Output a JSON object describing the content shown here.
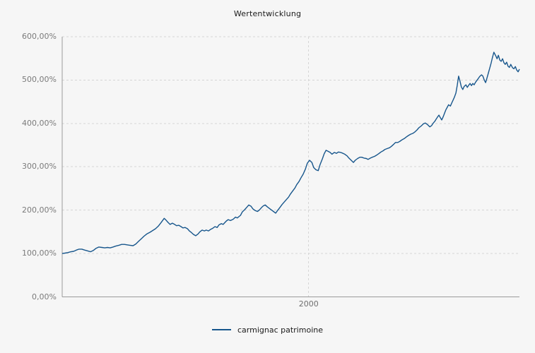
{
  "colors": {
    "background": "#f6f6f6",
    "series": "#17568c",
    "grid": "#d6d6d6",
    "axis": "#9a9a9a",
    "muted_text": "#7b7b7b",
    "text": "#1a1a1a"
  },
  "chart": {
    "title": "Wertentwicklung",
    "y_axis": {
      "ticks": [
        {
          "label": "600,00%",
          "value": 600
        },
        {
          "label": "500,00%",
          "value": 500
        },
        {
          "label": "400,00%",
          "value": 400
        },
        {
          "label": "300,00%",
          "value": 300
        },
        {
          "label": "200,00%",
          "value": 200
        },
        {
          "label": "100,00%",
          "value": 100
        },
        {
          "label": "0,00%",
          "value": 0
        }
      ]
    },
    "x_axis": {
      "ticks": [
        {
          "label": "2000",
          "frac": 0.539
        }
      ]
    },
    "legend": [
      {
        "label": "carmignac patrimoine",
        "color": "#17568c"
      }
    ]
  },
  "chart_data": {
    "type": "line",
    "title": "Wertentwicklung",
    "ylabel": "",
    "xlabel": "",
    "ylim": [
      0,
      600
    ],
    "y_unit": "%",
    "y_tick_labels": [
      "0,00%",
      "100,00%",
      "200,00%",
      "300,00%",
      "400,00%",
      "500,00%",
      "600,00%"
    ],
    "x_tick": {
      "label": "2000",
      "frac": 0.539
    },
    "grid": "dashed horizontal every 100%, dashed vertical at x tick",
    "legend_position": "bottom-center",
    "series": [
      {
        "name": "carmignac patrimoine",
        "color": "#17568c",
        "x_format": "fraction of time axis (0 = left edge, 1 = right edge), year 2000 at 0.539",
        "y_format": "percent",
        "points": [
          [
            0,
            100
          ],
          [
            0.006,
            101
          ],
          [
            0.012,
            102
          ],
          [
            0.019,
            104
          ],
          [
            0.025,
            105
          ],
          [
            0.031,
            108
          ],
          [
            0.037,
            110
          ],
          [
            0.043,
            110
          ],
          [
            0.049,
            108
          ],
          [
            0.056,
            106
          ],
          [
            0.062,
            104
          ],
          [
            0.068,
            107
          ],
          [
            0.074,
            112
          ],
          [
            0.08,
            115
          ],
          [
            0.087,
            114
          ],
          [
            0.093,
            113
          ],
          [
            0.099,
            114
          ],
          [
            0.105,
            113
          ],
          [
            0.111,
            115
          ],
          [
            0.117,
            117
          ],
          [
            0.124,
            119
          ],
          [
            0.13,
            121
          ],
          [
            0.136,
            121
          ],
          [
            0.142,
            120
          ],
          [
            0.148,
            119
          ],
          [
            0.155,
            118
          ],
          [
            0.161,
            122
          ],
          [
            0.167,
            128
          ],
          [
            0.173,
            134
          ],
          [
            0.179,
            140
          ],
          [
            0.185,
            145
          ],
          [
            0.192,
            149
          ],
          [
            0.198,
            153
          ],
          [
            0.204,
            157
          ],
          [
            0.21,
            163
          ],
          [
            0.216,
            171
          ],
          [
            0.223,
            181
          ],
          [
            0.227,
            177
          ],
          [
            0.232,
            171
          ],
          [
            0.236,
            167
          ],
          [
            0.241,
            170
          ],
          [
            0.246,
            167
          ],
          [
            0.25,
            164
          ],
          [
            0.255,
            165
          ],
          [
            0.26,
            162
          ],
          [
            0.264,
            159
          ],
          [
            0.269,
            160
          ],
          [
            0.274,
            157
          ],
          [
            0.278,
            152
          ],
          [
            0.283,
            148
          ],
          [
            0.287,
            144
          ],
          [
            0.292,
            141
          ],
          [
            0.297,
            145
          ],
          [
            0.301,
            150
          ],
          [
            0.306,
            154
          ],
          [
            0.311,
            152
          ],
          [
            0.315,
            154
          ],
          [
            0.32,
            152
          ],
          [
            0.325,
            156
          ],
          [
            0.329,
            158
          ],
          [
            0.334,
            162
          ],
          [
            0.339,
            160
          ],
          [
            0.343,
            166
          ],
          [
            0.348,
            169
          ],
          [
            0.352,
            167
          ],
          [
            0.359,
            175
          ],
          [
            0.363,
            178
          ],
          [
            0.368,
            176
          ],
          [
            0.374,
            179
          ],
          [
            0.379,
            184
          ],
          [
            0.383,
            182
          ],
          [
            0.39,
            188
          ],
          [
            0.394,
            196
          ],
          [
            0.399,
            201
          ],
          [
            0.405,
            208
          ],
          [
            0.408,
            212
          ],
          [
            0.413,
            209
          ],
          [
            0.417,
            203
          ],
          [
            0.422,
            199
          ],
          [
            0.427,
            197
          ],
          [
            0.431,
            200
          ],
          [
            0.436,
            206
          ],
          [
            0.44,
            210
          ],
          [
            0.444,
            212
          ],
          [
            0.448,
            208
          ],
          [
            0.453,
            204
          ],
          [
            0.458,
            200
          ],
          [
            0.462,
            197
          ],
          [
            0.467,
            193
          ],
          [
            0.471,
            199
          ],
          [
            0.476,
            206
          ],
          [
            0.481,
            213
          ],
          [
            0.485,
            218
          ],
          [
            0.49,
            224
          ],
          [
            0.495,
            230
          ],
          [
            0.499,
            237
          ],
          [
            0.504,
            244
          ],
          [
            0.509,
            251
          ],
          [
            0.513,
            259
          ],
          [
            0.518,
            266
          ],
          [
            0.522,
            274
          ],
          [
            0.527,
            283
          ],
          [
            0.532,
            295
          ],
          [
            0.536,
            308
          ],
          [
            0.541,
            315
          ],
          [
            0.546,
            310
          ],
          [
            0.55,
            298
          ],
          [
            0.555,
            293
          ],
          [
            0.56,
            291
          ],
          [
            0.564,
            305
          ],
          [
            0.569,
            318
          ],
          [
            0.573,
            330
          ],
          [
            0.577,
            338
          ],
          [
            0.581,
            336
          ],
          [
            0.586,
            333
          ],
          [
            0.59,
            329
          ],
          [
            0.595,
            333
          ],
          [
            0.6,
            331
          ],
          [
            0.604,
            334
          ],
          [
            0.609,
            333
          ],
          [
            0.614,
            331
          ],
          [
            0.618,
            329
          ],
          [
            0.623,
            325
          ],
          [
            0.627,
            320
          ],
          [
            0.632,
            315
          ],
          [
            0.637,
            310
          ],
          [
            0.641,
            315
          ],
          [
            0.646,
            319
          ],
          [
            0.651,
            322
          ],
          [
            0.655,
            322
          ],
          [
            0.66,
            320
          ],
          [
            0.665,
            319
          ],
          [
            0.669,
            317
          ],
          [
            0.674,
            320
          ],
          [
            0.678,
            322
          ],
          [
            0.683,
            324
          ],
          [
            0.688,
            327
          ],
          [
            0.692,
            330
          ],
          [
            0.697,
            334
          ],
          [
            0.702,
            337
          ],
          [
            0.706,
            340
          ],
          [
            0.711,
            342
          ],
          [
            0.716,
            344
          ],
          [
            0.72,
            347
          ],
          [
            0.725,
            352
          ],
          [
            0.729,
            356
          ],
          [
            0.734,
            356
          ],
          [
            0.739,
            359
          ],
          [
            0.743,
            362
          ],
          [
            0.748,
            365
          ],
          [
            0.753,
            369
          ],
          [
            0.757,
            372
          ],
          [
            0.762,
            375
          ],
          [
            0.767,
            377
          ],
          [
            0.771,
            380
          ],
          [
            0.776,
            385
          ],
          [
            0.78,
            390
          ],
          [
            0.785,
            394
          ],
          [
            0.79,
            399
          ],
          [
            0.794,
            401
          ],
          [
            0.799,
            397
          ],
          [
            0.804,
            392
          ],
          [
            0.808,
            395
          ],
          [
            0.811,
            400
          ],
          [
            0.815,
            405
          ],
          [
            0.818,
            410
          ],
          [
            0.821,
            415
          ],
          [
            0.824,
            419
          ],
          [
            0.827,
            413
          ],
          [
            0.83,
            408
          ],
          [
            0.833,
            415
          ],
          [
            0.836,
            423
          ],
          [
            0.839,
            431
          ],
          [
            0.842,
            437
          ],
          [
            0.845,
            443
          ],
          [
            0.849,
            440
          ],
          [
            0.852,
            447
          ],
          [
            0.855,
            454
          ],
          [
            0.858,
            461
          ],
          [
            0.861,
            470
          ],
          [
            0.864,
            488
          ],
          [
            0.867,
            509
          ],
          [
            0.87,
            497
          ],
          [
            0.873,
            484
          ],
          [
            0.876,
            478
          ],
          [
            0.879,
            485
          ],
          [
            0.883,
            489
          ],
          [
            0.886,
            483
          ],
          [
            0.889,
            488
          ],
          [
            0.892,
            492
          ],
          [
            0.895,
            487
          ],
          [
            0.898,
            492
          ],
          [
            0.901,
            489
          ],
          [
            0.904,
            495
          ],
          [
            0.909,
            502
          ],
          [
            0.913,
            508
          ],
          [
            0.917,
            512
          ],
          [
            0.92,
            509
          ],
          [
            0.923,
            500
          ],
          [
            0.926,
            494
          ],
          [
            0.929,
            505
          ],
          [
            0.932,
            516
          ],
          [
            0.935,
            527
          ],
          [
            0.938,
            539
          ],
          [
            0.941,
            552
          ],
          [
            0.944,
            564
          ],
          [
            0.948,
            556
          ],
          [
            0.951,
            549
          ],
          [
            0.954,
            557
          ],
          [
            0.957,
            546
          ],
          [
            0.96,
            543
          ],
          [
            0.963,
            549
          ],
          [
            0.966,
            540
          ],
          [
            0.969,
            536
          ],
          [
            0.972,
            541
          ],
          [
            0.975,
            532
          ],
          [
            0.978,
            529
          ],
          [
            0.981,
            536
          ],
          [
            0.985,
            528
          ],
          [
            0.988,
            526
          ],
          [
            0.991,
            531
          ],
          [
            0.994,
            523
          ],
          [
            0.997,
            519
          ],
          [
            1,
            525
          ]
        ]
      }
    ]
  }
}
